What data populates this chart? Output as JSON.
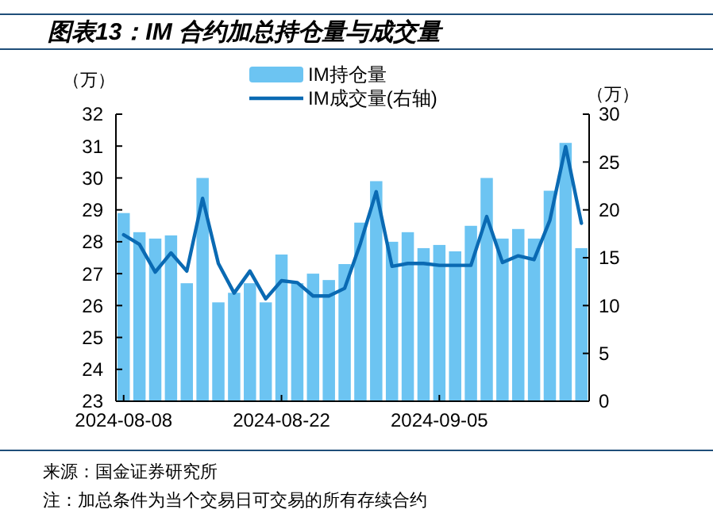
{
  "chart_data": {
    "type": "bar",
    "title": "图表13：IM 合约加总持仓量与成交量",
    "categories": [
      "2024-08-08",
      null,
      null,
      null,
      null,
      null,
      null,
      null,
      null,
      null,
      "2024-08-22",
      null,
      null,
      null,
      null,
      null,
      null,
      null,
      null,
      null,
      "2024-09-05",
      null,
      null,
      null,
      null,
      null,
      null,
      null,
      null,
      null
    ],
    "series": [
      {
        "name": "IM持仓量",
        "color": "#6cc4f2",
        "values": [
          28.9,
          28.3,
          28.1,
          28.2,
          26.7,
          30.0,
          26.1,
          26.4,
          26.7,
          26.1,
          27.6,
          26.7,
          27.0,
          26.8,
          27.3,
          28.6,
          29.9,
          28.0,
          28.3,
          27.8,
          27.9,
          27.7,
          28.5,
          30.0,
          28.1,
          28.4,
          28.1,
          29.6,
          31.1,
          27.8
        ]
      },
      {
        "name": "IM成交量(右轴)",
        "type": "line",
        "axis": "y2",
        "color": "#0a6ab3",
        "values": [
          17.4,
          16.4,
          13.5,
          15.5,
          13.6,
          21.2,
          14.4,
          11.3,
          13.6,
          10.7,
          12.6,
          12.4,
          11.0,
          11.0,
          11.8,
          16.5,
          21.9,
          14.1,
          14.4,
          14.4,
          14.2,
          14.2,
          14.2,
          19.3,
          14.5,
          15.2,
          14.8,
          18.9,
          26.6,
          18.6
        ]
      }
    ],
    "ylabel": "（万）",
    "y2label": "（万）",
    "ylim": [
      23,
      32
    ],
    "yticks": [
      23,
      24,
      25,
      26,
      27,
      28,
      29,
      30,
      31,
      32
    ],
    "y2lim": [
      0,
      30
    ],
    "y2ticks": [
      0,
      5,
      10,
      15,
      20,
      25,
      30
    ],
    "legend": "top",
    "grid": false,
    "annotations": [
      "来源：国金证券研究所",
      "注：加总条件为当个交易日可交易的所有存续合约"
    ]
  }
}
